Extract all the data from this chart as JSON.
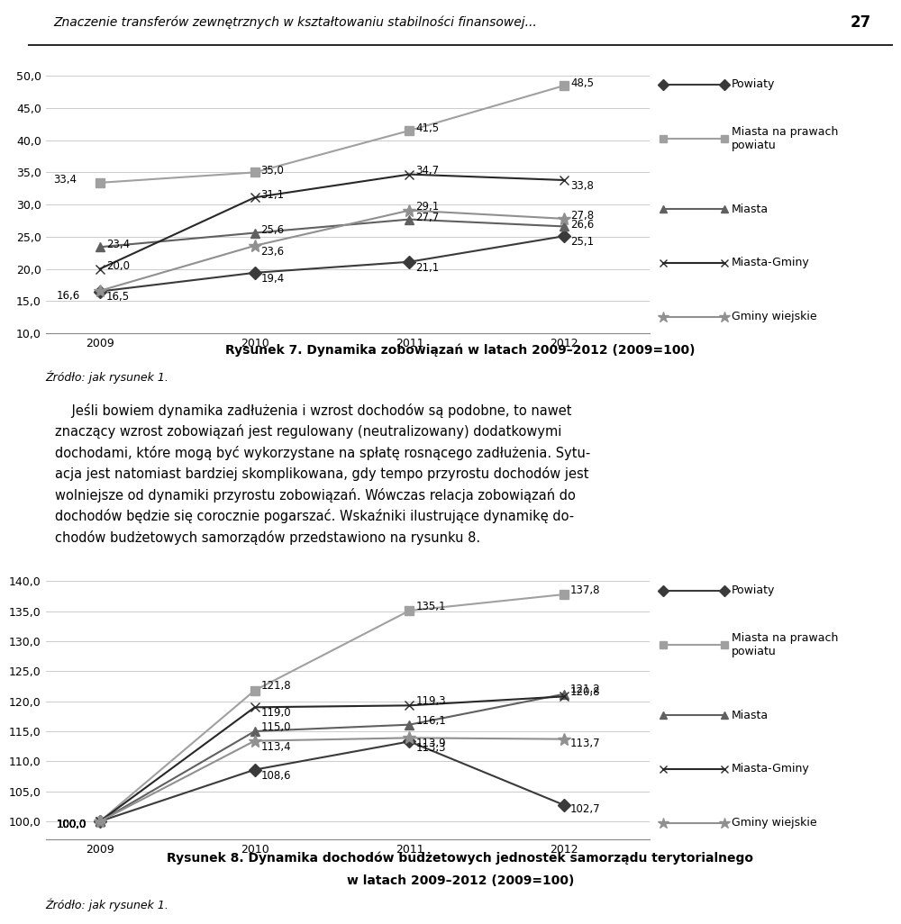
{
  "years": [
    2009,
    2010,
    2011,
    2012
  ],
  "chart1": {
    "ylim": [
      10.0,
      52.0
    ],
    "yticks": [
      10.0,
      15.0,
      20.0,
      25.0,
      30.0,
      35.0,
      40.0,
      45.0,
      50.0
    ],
    "series": {
      "Powiaty": [
        16.5,
        19.4,
        21.1,
        25.1
      ],
      "Miasta na prawach powiatu": [
        33.4,
        35.0,
        41.5,
        48.5
      ],
      "Miasta": [
        23.4,
        25.6,
        27.7,
        26.6
      ],
      "Miasta-Gminy": [
        20.0,
        31.1,
        34.7,
        33.8
      ],
      "Gminy wiejskie": [
        16.6,
        23.6,
        29.1,
        27.8
      ]
    }
  },
  "chart2": {
    "ylim": [
      97.0,
      142.0
    ],
    "yticks": [
      100.0,
      105.0,
      110.0,
      115.0,
      120.0,
      125.0,
      130.0,
      135.0,
      140.0
    ],
    "series": {
      "Powiaty": [
        100.0,
        108.6,
        113.3,
        102.7
      ],
      "Miasta na prawach powiatu": [
        100.0,
        121.8,
        135.1,
        137.8
      ],
      "Miasta": [
        100.0,
        115.0,
        116.1,
        121.2
      ],
      "Miasta-Gminy": [
        100.0,
        119.0,
        119.3,
        120.8
      ],
      "Gminy wiejskie": [
        100.0,
        113.4,
        113.9,
        113.7
      ]
    }
  },
  "header_text": "Znaczenie transferów zewnętrznych w kształtowaniu stabilności finansowej...",
  "header_page": "27",
  "caption1_bold": "Rysunek 7. Dynamika zobowiązań w latach 2009–2012 (2009=100)",
  "caption2_line1": "Rysunek 8. Dynamika dochodów budżetowych jednostek samorządu terytorialnego",
  "caption2_line2": "w latach 2009–2012 (2009=100)",
  "source_text": "Źródło: jak rysunek 1.",
  "body_lines": [
    "    Jeśli bowiem dynamika zadłużenia i wzrost dochodów są podobne, to nawet",
    "znaczący wzrost zobowiązań jest regulowany (neutralizowany) dodatkowymi",
    "dochodami, które mogą być wykorzystane na spłatę rosnącego zadłużenia. Sytu-",
    "acja jest natomiast bardziej skomplikowana, gdy tempo przyrostu dochodów jest",
    "wolniejsze od dynamiki przyrostu zobowiązań. Wówczas relacja zobowiązań do",
    "dochodów będzie się corocznie pogarszać. Wskaźniki ilustrujące dynamikę do-",
    "chodów budżetowych samorządów przedstawiono na rysunku 8."
  ],
  "series_colors": {
    "Powiaty": "#3a3a3a",
    "Miasta na prawach powiatu": "#a0a0a0",
    "Miasta": "#606060",
    "Miasta-Gminy": "#282828",
    "Gminy wiejskie": "#909090"
  },
  "series_markers": {
    "Powiaty": "D",
    "Miasta na prawach powiatu": "s",
    "Miasta": "^",
    "Miasta-Gminy": "x",
    "Gminy wiejskie": "*"
  }
}
